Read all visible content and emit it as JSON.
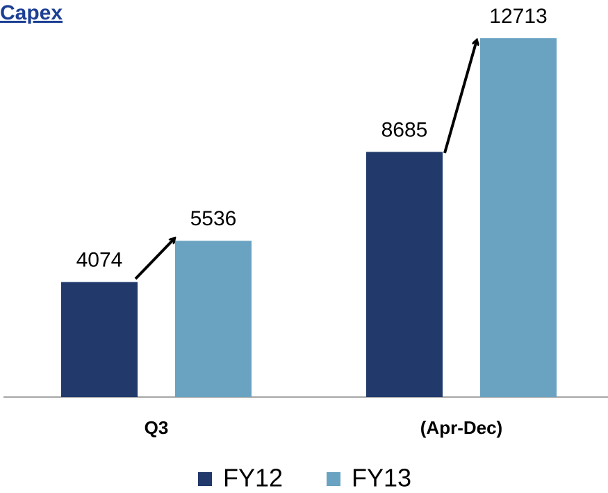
{
  "chart_data": {
    "type": "bar",
    "title": "Capex",
    "categories": [
      "Q3",
      "(Apr-Dec)"
    ],
    "series": [
      {
        "name": "FY12",
        "color": "#213a6b",
        "values": [
          4074,
          8685
        ]
      },
      {
        "name": "FY13",
        "color": "#69a3c1",
        "values": [
          5536,
          12713
        ]
      }
    ]
  }
}
